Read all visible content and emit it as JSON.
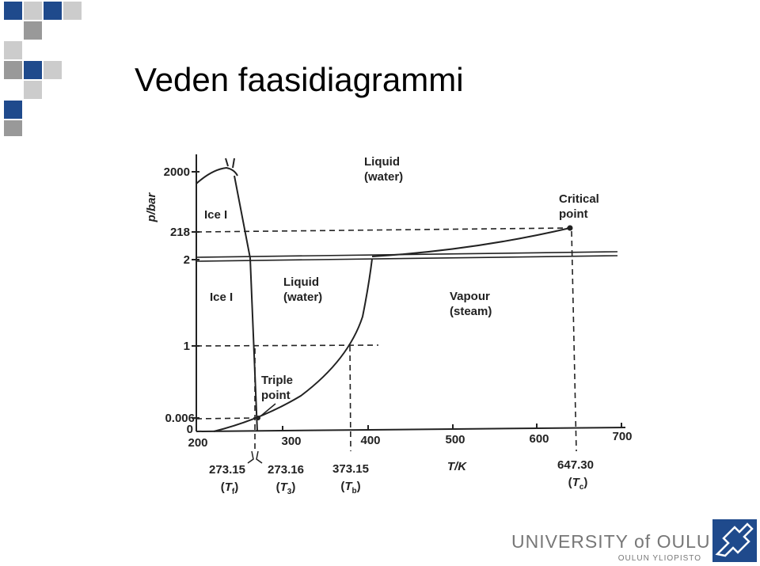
{
  "title": "Veden faasidiagrammi",
  "diagram": {
    "y_axis_label": "p/bar",
    "y_ticks": [
      "2000",
      "218",
      "2",
      "1",
      "0.006",
      "0"
    ],
    "x_ticks": [
      "200",
      "300",
      "400",
      "500",
      "600",
      "700"
    ],
    "x_axis_label": "T/K",
    "regions": {
      "ice_upper": "Ice I",
      "ice_lower": "Ice I",
      "liquid_upper": [
        "Liquid",
        "(water)"
      ],
      "liquid_lower": [
        "Liquid",
        "(water)"
      ],
      "vapour": [
        "Vapour",
        "(steam)"
      ],
      "critical_point": [
        "Critical",
        "point"
      ],
      "triple_point": [
        "Triple",
        "point"
      ]
    },
    "temperatures": [
      {
        "value": "273.15",
        "parts": [
          "(",
          "T",
          "f",
          ")"
        ]
      },
      {
        "value": "273.16",
        "parts": [
          "(",
          "T",
          "3",
          ")"
        ]
      },
      {
        "value": "373.15",
        "parts": [
          "(",
          "T",
          "b",
          ")"
        ]
      },
      {
        "value": "647.30",
        "parts": [
          "(",
          "T",
          "c",
          ")"
        ]
      }
    ]
  },
  "logo": {
    "name": "UNIVERSITY of OULU",
    "subname": "OULUN YLIOPISTO"
  }
}
